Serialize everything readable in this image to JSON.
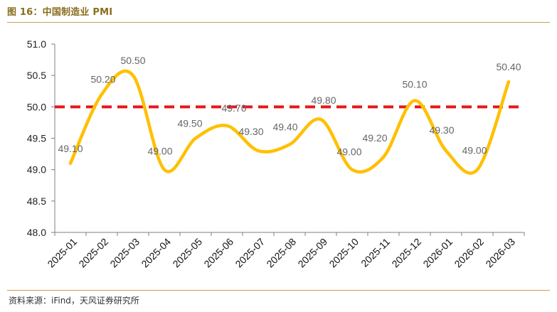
{
  "figure": {
    "title": "图 16：中国制造业 PMI",
    "source": "资料来源：iFind，天风证券研究所"
  },
  "colors": {
    "series": "#FFC000",
    "reference": "#E8161B",
    "title": "#8a6d1e",
    "rule": "#c8a24a"
  },
  "chart_data": {
    "type": "line",
    "title": "",
    "xlabel": "",
    "ylabel": "",
    "categories": [
      "2025-01",
      "2025-02",
      "2025-03",
      "2025-04",
      "2025-05",
      "2025-06",
      "2025-07",
      "2025-08",
      "2025-09",
      "2025-10",
      "2025-11",
      "2025-12",
      "2026-01",
      "2026-02",
      "2026-03"
    ],
    "series": [
      {
        "values": [
          49.1,
          50.2,
          50.5,
          49.0,
          49.5,
          49.7,
          49.3,
          49.4,
          49.8,
          49.0,
          49.2,
          50.1,
          49.3,
          49.0,
          50.4
        ]
      }
    ],
    "data_labels": [
      "49.10",
      "50.20",
      "50.50",
      "49.00",
      "49.50",
      "49.70",
      "49.30",
      "49.40",
      "49.80",
      "49.00",
      "49.20",
      "50.10",
      "49.30",
      "49.00",
      "50.40"
    ],
    "reference_line": {
      "value": 50.0,
      "style": "dashed"
    },
    "ylim": [
      48.0,
      51.0
    ],
    "yticks": [
      "48.0",
      "48.5",
      "49.0",
      "49.5",
      "50.0",
      "50.5",
      "51.0"
    ],
    "smooth": true,
    "grid": false,
    "legend": "none"
  }
}
